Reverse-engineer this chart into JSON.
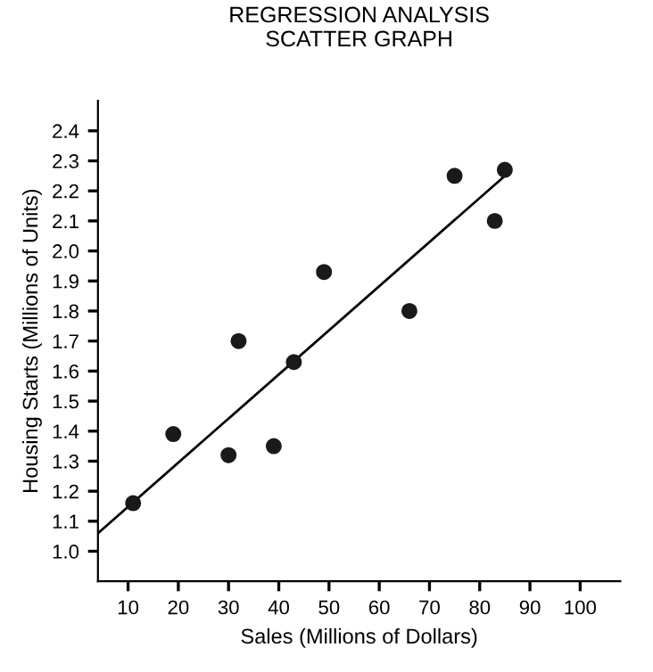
{
  "chart_data": {
    "type": "scatter",
    "title": "REGRESSION ANALYSIS\nSCATTER GRAPH",
    "xlabel": "Sales (Millions of Dollars)",
    "ylabel": "Housing Starts (Millions of Units)",
    "series": [
      {
        "marker": "circle",
        "color": "#1a1a1a",
        "x": [
          11,
          19,
          30,
          32,
          39,
          43,
          49,
          66,
          75,
          83,
          85
        ],
        "values": [
          1.16,
          1.39,
          1.32,
          1.7,
          1.35,
          1.63,
          1.93,
          1.8,
          2.25,
          2.1,
          2.27
        ]
      },
      {
        "type": "line",
        "color": "#000000",
        "x": [
          4,
          85
        ],
        "values": [
          1.06,
          2.25
        ]
      }
    ],
    "xlim": [
      4,
      108
    ],
    "ylim": [
      0.9,
      2.5
    ],
    "xticks": [
      10,
      20,
      30,
      40,
      50,
      60,
      70,
      80,
      90,
      100
    ],
    "yticks": [
      {
        "value": 1.0,
        "label": "1.0"
      },
      {
        "value": 1.1,
        "label": "1.1"
      },
      {
        "value": 1.2,
        "label": "1.2"
      },
      {
        "value": 1.3,
        "label": "1.3"
      },
      {
        "value": 1.4,
        "label": "1.4"
      },
      {
        "value": 1.5,
        "label": "1.5"
      },
      {
        "value": 1.6,
        "label": "1.6"
      },
      {
        "value": 1.7,
        "label": "1.7"
      },
      {
        "value": 1.8,
        "label": "1.8"
      },
      {
        "value": 1.9,
        "label": "1.9"
      },
      {
        "value": 2.0,
        "label": "2.0"
      },
      {
        "value": 2.1,
        "label": "2.1"
      },
      {
        "value": 2.2,
        "label": "2.2"
      },
      {
        "value": 2.3,
        "label": "2.3"
      },
      {
        "value": 2.4,
        "label": "2.4"
      }
    ],
    "grid": false
  }
}
